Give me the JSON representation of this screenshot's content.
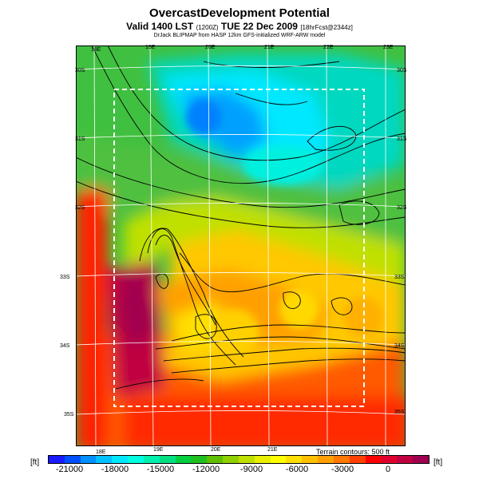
{
  "header": {
    "title": "OvercastDevelopment Potential",
    "valid_prefix": "Valid 1400 LST",
    "valid_code": "(1200Z)",
    "valid_date": "TUE 22 Dec 2009",
    "valid_suffix": "[18hrFcst@2344z]",
    "credit": "DrJack BLIPMAP from HASP 12km GFS-initialized WRF-ARW model"
  },
  "map": {
    "top_lon_labels": [
      "18E",
      "19E",
      "20E",
      "21E",
      "22E",
      "23E"
    ],
    "bottom_lon_labels": [
      "18E",
      "19E",
      "20E",
      "21E"
    ],
    "left_lat_labels": [
      "30S",
      "31S",
      "32S",
      "33S",
      "34S",
      "35S"
    ],
    "right_lat_labels": [
      "30S",
      "31S",
      "32S",
      "33S",
      "34S",
      "35S"
    ],
    "terrain_note": "Terrain contours: 500 ft"
  },
  "colorbar": {
    "unit_left": "[ft]",
    "unit_right": "[ft]",
    "tick_labels": [
      "-21000",
      "-18000",
      "-15000",
      "-12000",
      "-9000",
      "-6000",
      "-3000",
      "0"
    ],
    "colors": [
      "#1a1aff",
      "#0050ff",
      "#0090ff",
      "#00c0ff",
      "#00e8ff",
      "#00ffe0",
      "#00f0b0",
      "#00e080",
      "#00d040",
      "#20c020",
      "#60c000",
      "#90d000",
      "#c0e000",
      "#e8f000",
      "#ffff00",
      "#ffe000",
      "#ffc000",
      "#ffa000",
      "#ff7800",
      "#ff4000",
      "#ff0000",
      "#e00030",
      "#c00040",
      "#a00050"
    ]
  }
}
